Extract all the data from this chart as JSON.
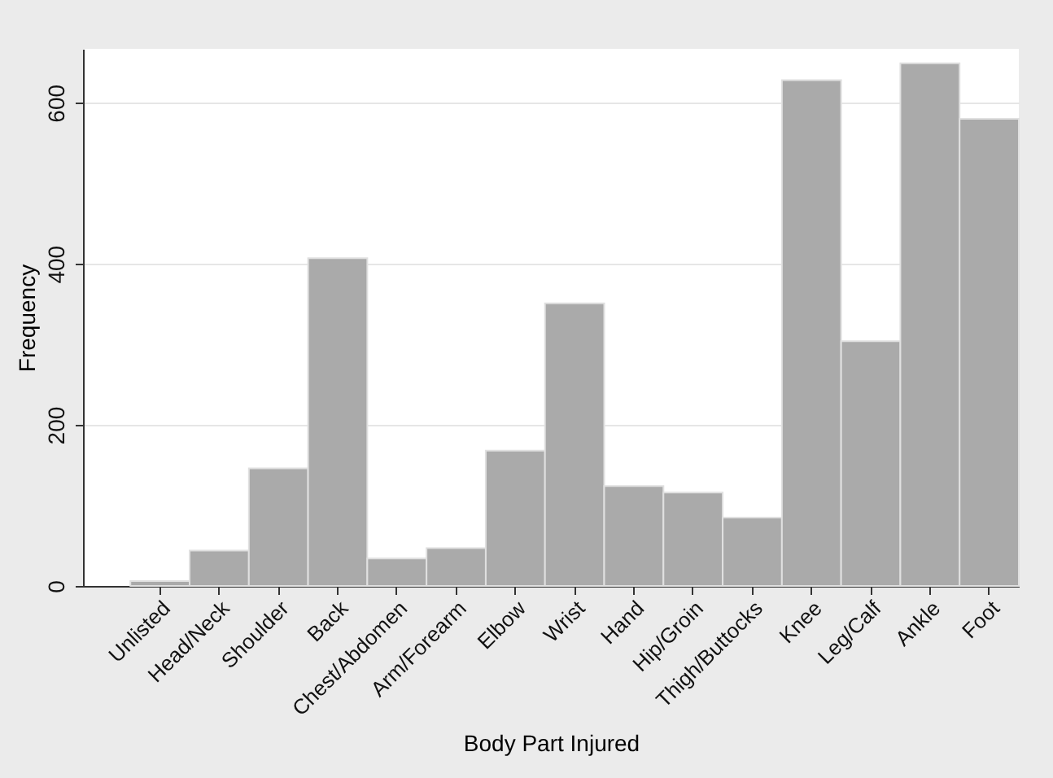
{
  "chart_data": {
    "type": "bar",
    "xlabel": "Body Part Injured",
    "ylabel": "Frequency",
    "categories": [
      "Unlisted",
      "Head/Neck",
      "Shoulder",
      "Back",
      "Chest/Abdomen",
      "Arm/Forearm",
      "Elbow",
      "Wrist",
      "Hand",
      "Hip/Groin",
      "Thigh/Buttocks",
      "Knee",
      "Leg/Calf",
      "Ankle",
      "Foot"
    ],
    "values": [
      6,
      44,
      146,
      407,
      34,
      47,
      168,
      351,
      124,
      116,
      85,
      628,
      304,
      649,
      580
    ],
    "color": "#aaaaaa",
    "ylim": [
      0,
      667
    ],
    "yticks": [
      0,
      200,
      400,
      600
    ],
    "grid": "y"
  }
}
